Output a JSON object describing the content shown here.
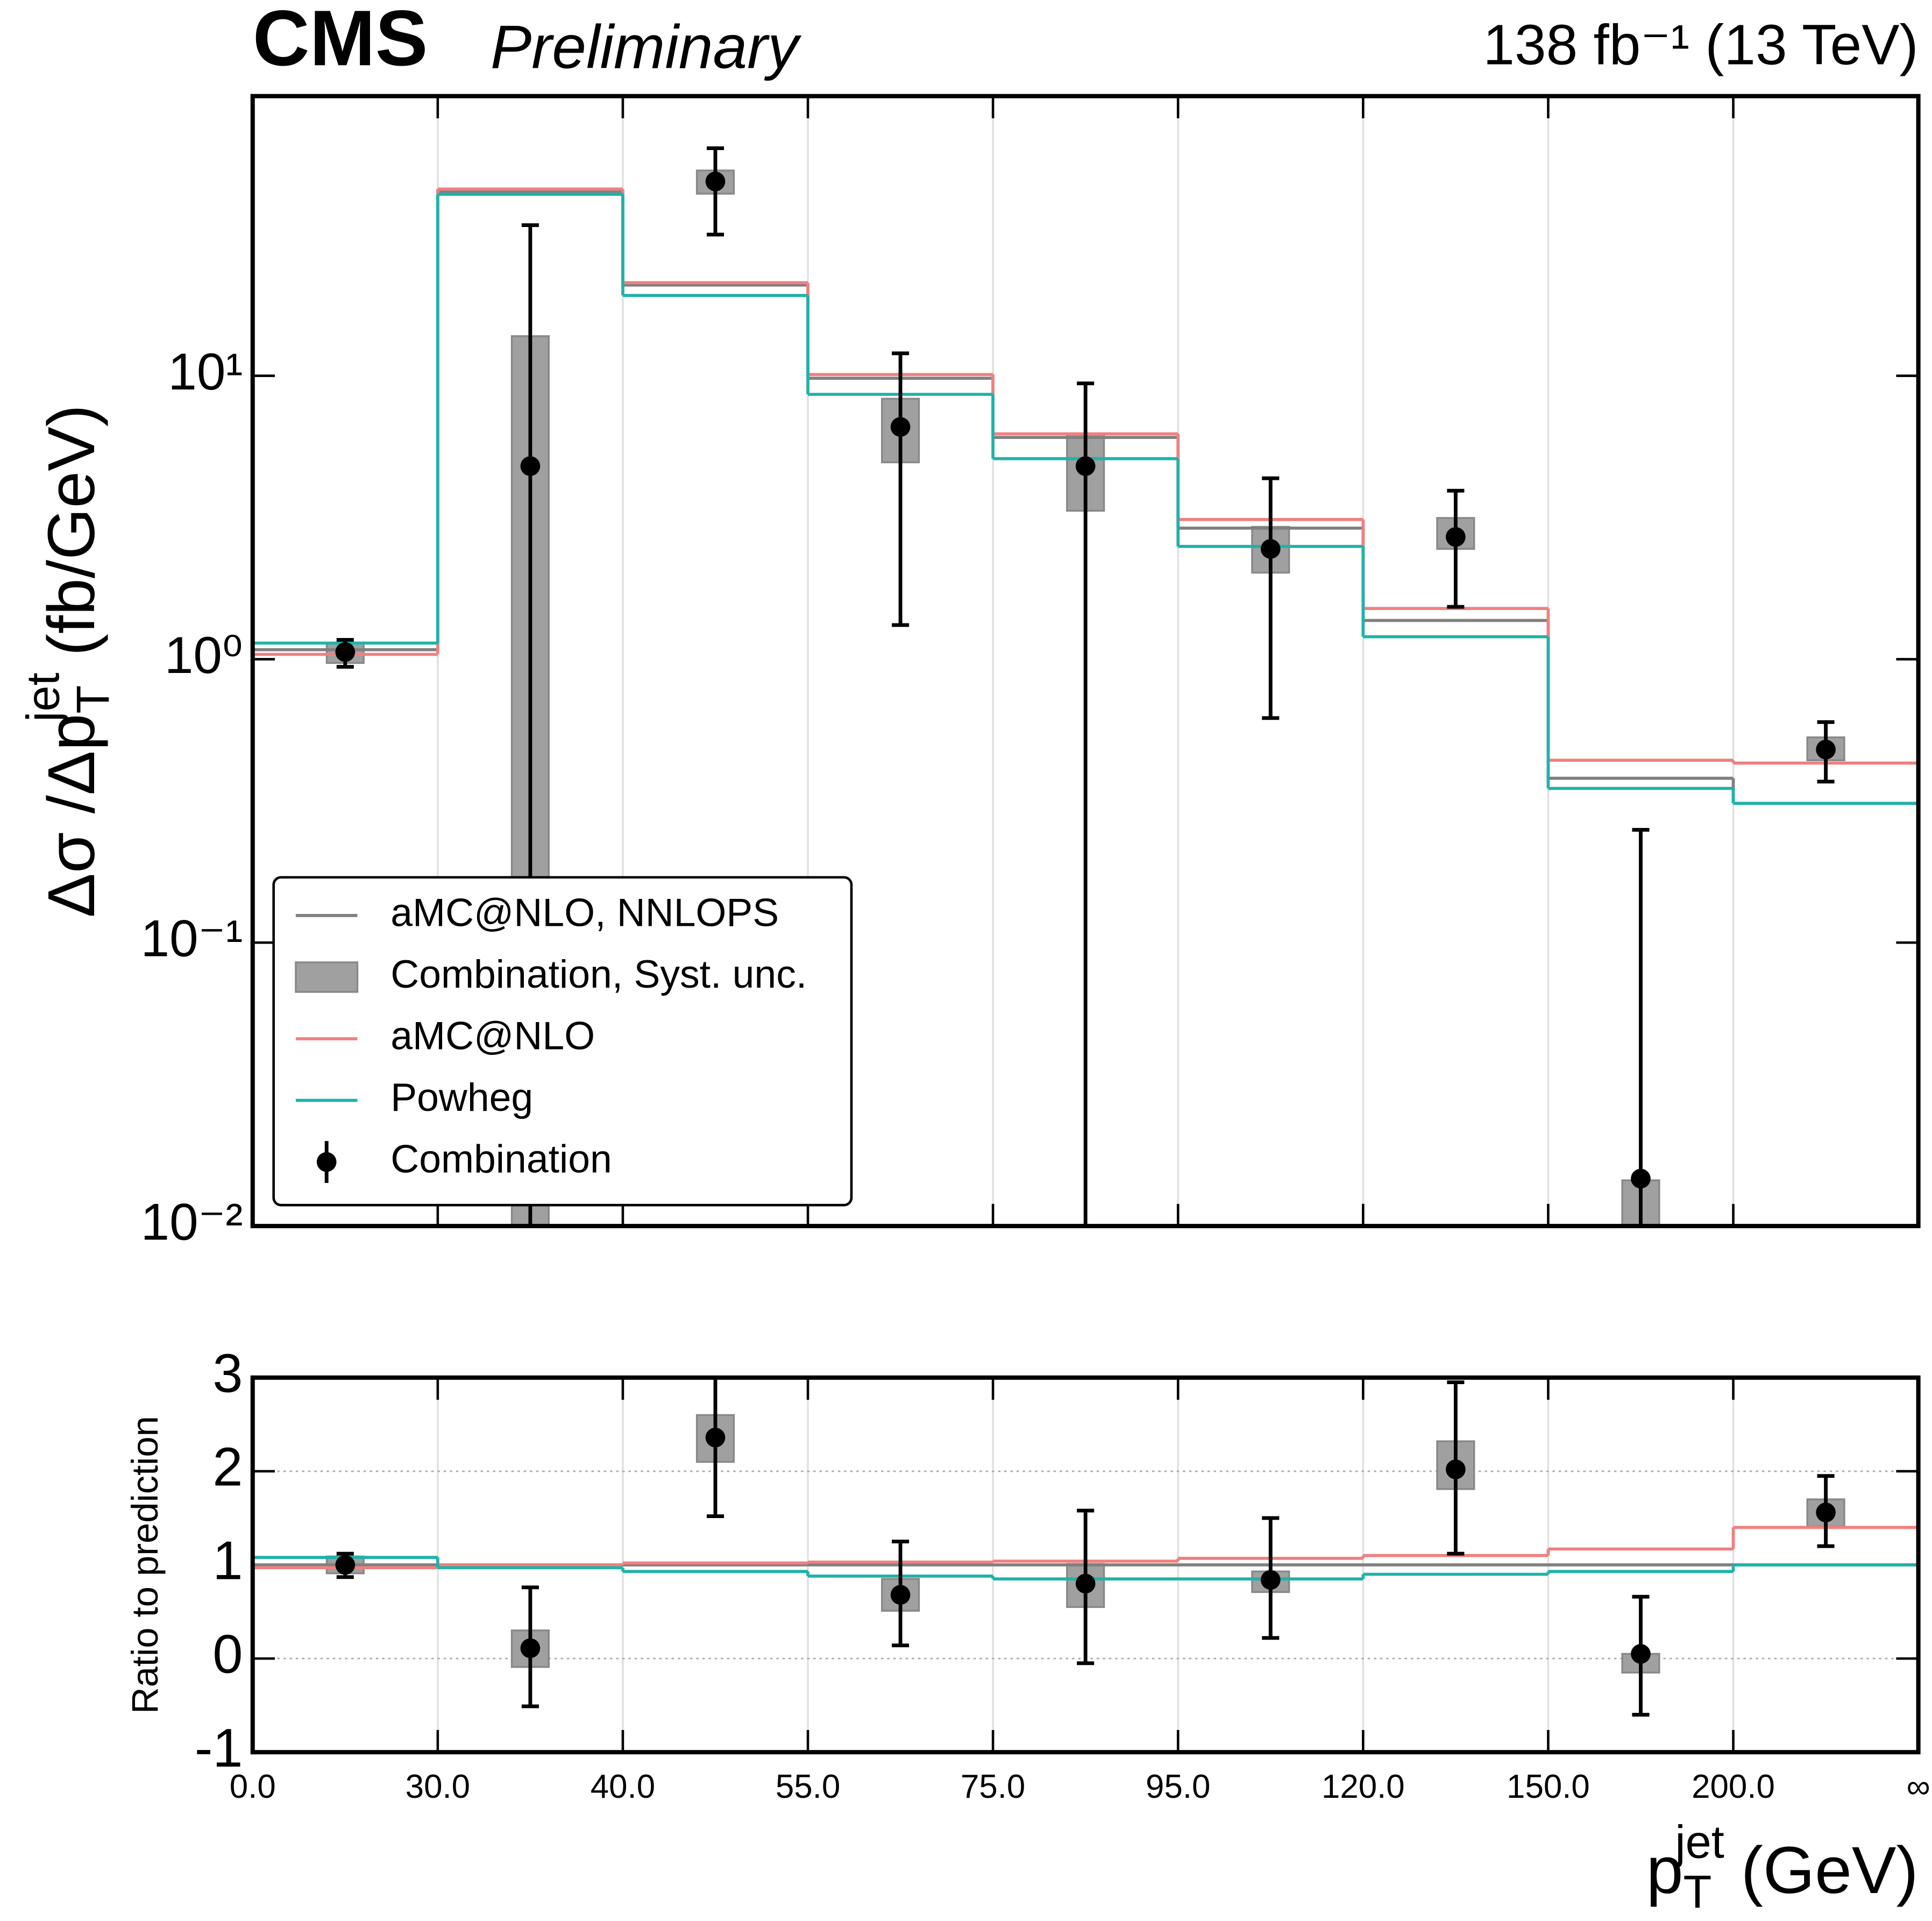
{
  "chart_data": [
    {
      "type": "step",
      "title": "CMS",
      "subtitle": "Preliminary",
      "annotation": "138 fb⁻¹ (13 TeV)",
      "ylabel": {
        "text": "Δσ /Δp",
        "sub": "T",
        "sup": "jet",
        "unit": "(fb/GeV)"
      },
      "log_y": true,
      "ylim": [
        0.01,
        97
      ],
      "yticks": [
        {
          "value": 0.01,
          "label": "10⁻²"
        },
        {
          "value": 0.1,
          "label": "10⁻¹"
        },
        {
          "value": 1,
          "label": "10⁰"
        },
        {
          "value": 10,
          "label": "10¹"
        }
      ],
      "legend": "lower left",
      "series": [
        {
          "name": "aMC@NLO, NNLOPS",
          "color": "#808080",
          "values": [
            1.08,
            44.6,
            20.9,
            9.8,
            6.06,
            2.9,
            1.37,
            0.38,
            0.31
          ]
        },
        {
          "name": "aMC@NLO",
          "color": "#f08080",
          "values": [
            1.04,
            45.6,
            21.3,
            10.1,
            6.24,
            3.11,
            1.51,
            0.44,
            0.43
          ]
        },
        {
          "name": "Powheg",
          "color": "#20b2aa",
          "values": [
            1.14,
            43.7,
            19.2,
            8.6,
            5.1,
            2.5,
            1.2,
            0.35,
            0.31
          ]
        }
      ],
      "band": {
        "name": "Combination, Syst. unc.",
        "color": "#a0a0a0",
        "low": [
          0.97,
          0.005,
          43.9,
          4.95,
          3.34,
          2.02,
          2.45,
          0.005,
          0.44
        ],
        "high": [
          1.14,
          13.8,
          53,
          8.3,
          6.2,
          2.93,
          3.15,
          0.0145,
          0.53
        ]
      },
      "points": {
        "name": "Combination",
        "color": "#000000",
        "values": [
          1.06,
          4.8,
          48.5,
          6.6,
          4.8,
          2.45,
          2.7,
          0.0147,
          0.48
        ],
        "err_low": [
          0.94,
          0.001,
          31.5,
          1.32,
          0.001,
          0.62,
          1.53,
          0.001,
          0.37
        ],
        "err_high": [
          1.17,
          34,
          63.5,
          12,
          9.4,
          4.35,
          3.93,
          0.25,
          0.6
        ]
      }
    },
    {
      "type": "step",
      "ylabel": {
        "text": "Ratio to prediction"
      },
      "ylim": [
        -1,
        3
      ],
      "yticks": [
        -1,
        0,
        1,
        2,
        3
      ],
      "grid": true,
      "x_edges": [
        "0.0",
        "30.0",
        "40.0",
        "55.0",
        "75.0",
        "95.0",
        "120.0",
        "150.0",
        "200.0",
        "∞"
      ],
      "xlabel": {
        "text": "p",
        "sub": "T",
        "sup": "jet",
        "unit": "(GeV)"
      },
      "series": [
        {
          "color": "#808080",
          "values": [
            1.0,
            1.0,
            1.0,
            1.0,
            1.0,
            1.0,
            1.0,
            1.0,
            1.0
          ]
        },
        {
          "color": "#f08080",
          "values": [
            0.97,
            1.0,
            1.02,
            1.03,
            1.04,
            1.07,
            1.1,
            1.17,
            1.4
          ]
        },
        {
          "color": "#20b2aa",
          "values": [
            1.08,
            0.97,
            0.93,
            0.88,
            0.85,
            0.85,
            0.9,
            0.93,
            1.0
          ]
        }
      ],
      "band": {
        "color": "#a0a0a0",
        "low": [
          0.91,
          -0.09,
          2.1,
          0.51,
          0.55,
          0.71,
          1.81,
          -0.15,
          1.41
        ],
        "high": [
          1.09,
          0.3,
          2.6,
          0.85,
          1.01,
          0.93,
          2.32,
          0.05,
          1.7
        ]
      },
      "points": {
        "color": "#000000",
        "values": [
          1.0,
          0.11,
          2.36,
          0.68,
          0.8,
          0.84,
          2.02,
          0.05,
          1.56
        ],
        "err_low": [
          0.87,
          -0.51,
          1.52,
          0.14,
          -0.05,
          0.22,
          1.12,
          -0.6,
          1.2
        ],
        "err_high": [
          1.12,
          0.76,
          3.0,
          1.25,
          1.58,
          1.5,
          2.95,
          0.66,
          1.95
        ]
      }
    }
  ]
}
